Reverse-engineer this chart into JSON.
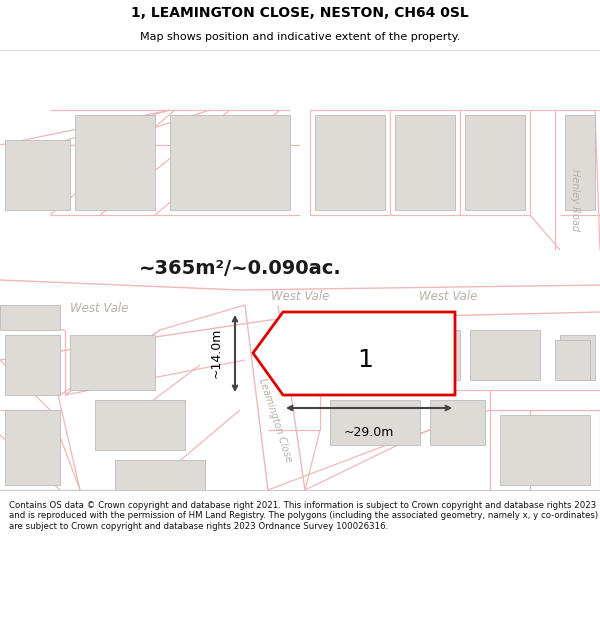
{
  "title": "1, LEAMINGTON CLOSE, NESTON, CH64 0SL",
  "subtitle": "Map shows position and indicative extent of the property.",
  "area_label": "~365m²/~0.090ac.",
  "property_number": "1",
  "dim_width": "~29.0m",
  "dim_height": "~14.0m",
  "street_west_vale_left": "West Vale",
  "street_west_vale_mid": "West Vale",
  "street_west_vale_right": "West Vale",
  "street_leamington": "Leamington Close",
  "street_henley": "Henley Road",
  "footer_text": "Contains OS data © Crown copyright and database right 2021. This information is subject to Crown copyright and database rights 2023 and is reproduced with the permission of HM Land Registry. The polygons (including the associated geometry, namely x, y co-ordinates) are subject to Crown copyright and database rights 2023 Ordnance Survey 100026316.",
  "bg_color": "#f7f5f2",
  "road_line_color": "#f0b8b8",
  "road_outline_color": "#e8a0a0",
  "building_fill": "#dedbd6",
  "building_edge": "#c8c5c0",
  "plot_edge": "#dd0000",
  "plot_fill": "#ffffff",
  "dim_line_color": "#444444",
  "text_road_color": "#b8b0a8",
  "text_title_color": "#000000",
  "area_text_color": "#1a1a1a"
}
